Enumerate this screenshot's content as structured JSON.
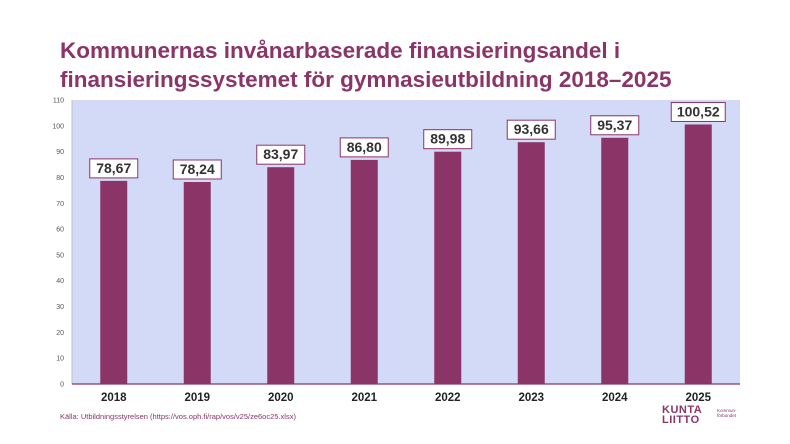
{
  "title_lines": [
    "Kommunernas invånarbaserade finansieringsandel i",
    "finansieringssystemet för gymnasieutbildning 2018–2025"
  ],
  "source": "Källa: Utbildningsstyrelsen (https://vos.oph.fi/rap/vos/v25/ze6oc25.xlsx)",
  "logo": {
    "word_line1": "KUNTA",
    "word_line2": "LIITTO",
    "sub_line1": "Kommun-",
    "sub_line2": "förbundet"
  },
  "colors": {
    "bar": "#8b3467",
    "plot_background": "#d3daf7",
    "title": "#8b3467",
    "label_border": "#8b3467"
  },
  "chart_data": {
    "type": "bar",
    "categories": [
      "2018",
      "2019",
      "2020",
      "2021",
      "2022",
      "2023",
      "2024",
      "2025"
    ],
    "values": [
      78.67,
      78.24,
      83.97,
      86.8,
      89.98,
      93.66,
      95.37,
      100.52
    ],
    "data_labels": [
      "78,67",
      "78,24",
      "83,97",
      "86,80",
      "89,98",
      "93,66",
      "95,37",
      "100,52"
    ],
    "ylim": [
      0,
      110
    ],
    "yticks": [
      0,
      10,
      20,
      30,
      40,
      50,
      60,
      70,
      80,
      90,
      100,
      110
    ],
    "title": "Kommunernas invånarbaserade finansieringsandel i finansieringssystemet för gymnasieutbildning 2018–2025",
    "xlabel": "",
    "ylabel": "",
    "grid": false,
    "legend": false
  }
}
